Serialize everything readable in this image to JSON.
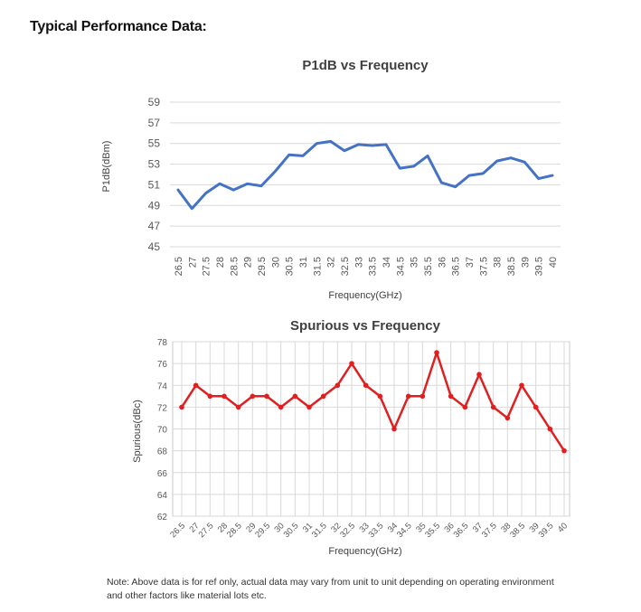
{
  "heading": "Typical Performance Data:",
  "note": {
    "line1": "Note: Above data is for ref only, actual data may vary from unit to unit depending on operating environment",
    "line2": "and other factors like material lots etc."
  },
  "chart_data": [
    {
      "type": "line",
      "title": "P1dB vs Frequency",
      "xlabel": "Frequency(GHz)",
      "ylabel": "P1dB(dBm)",
      "categories": [
        "26.5",
        "27",
        "27.5",
        "28",
        "28.5",
        "29",
        "29.5",
        "30",
        "30.5",
        "31",
        "31.5",
        "32",
        "32.5",
        "33",
        "33.5",
        "34",
        "34.5",
        "35",
        "35.5",
        "36",
        "36.5",
        "37",
        "37.5",
        "38",
        "38.5",
        "39",
        "39.5",
        "40"
      ],
      "yticks": [
        45,
        47,
        49,
        51,
        53,
        55,
        57,
        59
      ],
      "ylim": [
        45,
        59
      ],
      "grid": "horizontal",
      "markers": false,
      "color": "#4472c4",
      "series": [
        {
          "name": "P1dB",
          "values": [
            50.5,
            48.7,
            50.2,
            51.1,
            50.5,
            51.1,
            50.9,
            52.3,
            53.9,
            53.8,
            55.0,
            55.2,
            54.3,
            54.9,
            54.8,
            54.9,
            52.6,
            52.8,
            53.8,
            51.2,
            50.8,
            51.9,
            52.1,
            53.3,
            53.6,
            53.2,
            51.6,
            51.9
          ]
        }
      ]
    },
    {
      "type": "line",
      "title": "Spurious vs Frequency",
      "xlabel": "Frequency(GHz)",
      "ylabel": "Spurious(dBc)",
      "categories": [
        "26.5",
        "27",
        "27.5",
        "28",
        "28.5",
        "29",
        "29.5",
        "30",
        "30.5",
        "31",
        "31.5",
        "32",
        "32.5",
        "33",
        "33.5",
        "34",
        "34.5",
        "35",
        "35.5",
        "36",
        "36.5",
        "37",
        "37.5",
        "38",
        "38.5",
        "39",
        "39.5",
        "40"
      ],
      "yticks": [
        62,
        64,
        66,
        68,
        70,
        72,
        74,
        76,
        78
      ],
      "ylim": [
        62,
        78
      ],
      "grid": "both",
      "markers": true,
      "color": "#e02020",
      "series": [
        {
          "name": "Spurious",
          "values": [
            72,
            74,
            73,
            73,
            72,
            73,
            73,
            72,
            73,
            72,
            73,
            74,
            76,
            74,
            73,
            70,
            73,
            73,
            77,
            73,
            72,
            75,
            72,
            71,
            74,
            72,
            70,
            68
          ]
        }
      ]
    }
  ]
}
